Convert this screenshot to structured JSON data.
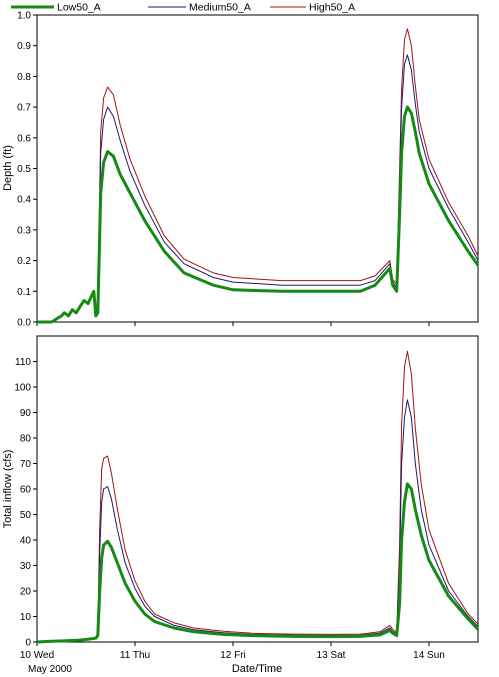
{
  "chart_data": [
    {
      "type": "line",
      "ylabel": "Depth (ft)",
      "xlabel": "",
      "ylim": [
        0,
        1.0
      ],
      "yticks": [
        0,
        0.1,
        0.2,
        0.3,
        0.4,
        0.5,
        0.6,
        0.7,
        0.8,
        0.9,
        1.0
      ],
      "ytick_labels": [
        "0.0",
        "0.1",
        "0.2",
        "0.3",
        "0.4",
        "0.5",
        "0.6",
        "0.7",
        "0.8",
        "0.9",
        "1.0"
      ],
      "xlim_days": [
        10,
        14.5
      ],
      "grid": false,
      "series": [
        {
          "name": "Low50_A",
          "color": "#158a15",
          "x_days": [
            10.0,
            10.15,
            10.2,
            10.25,
            10.28,
            10.32,
            10.36,
            10.4,
            10.44,
            10.48,
            10.52,
            10.55,
            10.58,
            10.6,
            10.62,
            10.65,
            10.68,
            10.72,
            10.78,
            10.85,
            10.95,
            11.1,
            11.3,
            11.5,
            11.8,
            12.0,
            12.5,
            13.0,
            13.3,
            13.45,
            13.6,
            13.63,
            13.67,
            13.7,
            13.72,
            13.75,
            13.78,
            13.82,
            13.86,
            13.9,
            14.0,
            14.2,
            14.4,
            14.5
          ],
          "y": [
            0,
            0,
            0.01,
            0.02,
            0.03,
            0.02,
            0.04,
            0.03,
            0.05,
            0.07,
            0.06,
            0.08,
            0.1,
            0.02,
            0.03,
            0.42,
            0.52,
            0.555,
            0.54,
            0.48,
            0.42,
            0.33,
            0.23,
            0.16,
            0.12,
            0.105,
            0.1,
            0.1,
            0.1,
            0.12,
            0.175,
            0.12,
            0.1,
            0.35,
            0.55,
            0.67,
            0.7,
            0.68,
            0.62,
            0.55,
            0.45,
            0.33,
            0.23,
            0.185
          ]
        },
        {
          "name": "Medium50_A",
          "color": "#1a1a6e",
          "x_days": [
            10.6,
            10.62,
            10.65,
            10.68,
            10.72,
            10.78,
            10.85,
            10.95,
            11.1,
            11.3,
            11.5,
            11.8,
            12.0,
            12.5,
            13.0,
            13.3,
            13.45,
            13.6,
            13.63,
            13.67,
            13.7,
            13.72,
            13.75,
            13.78,
            13.82,
            13.86,
            13.9,
            14.0,
            14.2,
            14.4,
            14.5
          ],
          "y": [
            0.03,
            0.04,
            0.55,
            0.66,
            0.7,
            0.67,
            0.59,
            0.49,
            0.38,
            0.26,
            0.19,
            0.145,
            0.13,
            0.12,
            0.12,
            0.12,
            0.135,
            0.19,
            0.13,
            0.11,
            0.45,
            0.7,
            0.84,
            0.87,
            0.82,
            0.71,
            0.62,
            0.5,
            0.37,
            0.26,
            0.2
          ]
        },
        {
          "name": "High50_A",
          "color": "#a01414",
          "x_days": [
            10.6,
            10.62,
            10.65,
            10.68,
            10.72,
            10.78,
            10.85,
            10.95,
            11.1,
            11.3,
            11.5,
            11.8,
            12.0,
            12.5,
            13.0,
            13.3,
            13.45,
            13.6,
            13.63,
            13.67,
            13.7,
            13.72,
            13.75,
            13.78,
            13.82,
            13.86,
            13.9,
            14.0,
            14.2,
            14.4,
            14.5
          ],
          "y": [
            0.04,
            0.05,
            0.62,
            0.73,
            0.765,
            0.74,
            0.64,
            0.53,
            0.41,
            0.28,
            0.205,
            0.16,
            0.145,
            0.135,
            0.135,
            0.135,
            0.15,
            0.2,
            0.14,
            0.12,
            0.5,
            0.76,
            0.92,
            0.955,
            0.9,
            0.77,
            0.66,
            0.53,
            0.39,
            0.28,
            0.215
          ]
        }
      ],
      "legend": [
        "Low50_A",
        "Medium50_A",
        "High50_A"
      ],
      "legend_position": "top-left"
    },
    {
      "type": "line",
      "ylabel": "Total inflow (cfs)",
      "xlabel": "Date/Time",
      "ylim": [
        0,
        120
      ],
      "yticks": [
        0,
        10,
        20,
        30,
        40,
        50,
        60,
        70,
        80,
        90,
        100,
        110
      ],
      "ytick_labels": [
        "0",
        "10",
        "20",
        "30",
        "40",
        "50",
        "60",
        "70",
        "80",
        "90",
        "100",
        "110"
      ],
      "xlim_days": [
        10,
        14.5
      ],
      "xticks_days": [
        10,
        11,
        12,
        13,
        14
      ],
      "xtick_labels": [
        "10 Wed",
        "11 Thu",
        "12 Fri",
        "13 Sat",
        "14 Sun"
      ],
      "x_sublabel": "May 2000",
      "grid": false,
      "series": [
        {
          "name": "Low50_A",
          "color": "#158a15",
          "x_days": [
            10.0,
            10.15,
            10.3,
            10.45,
            10.55,
            10.6,
            10.62,
            10.64,
            10.66,
            10.68,
            10.72,
            10.76,
            10.82,
            10.9,
            11.0,
            11.1,
            11.2,
            11.4,
            11.6,
            11.9,
            12.2,
            12.6,
            13.0,
            13.3,
            13.5,
            13.6,
            13.63,
            13.67,
            13.7,
            13.72,
            13.75,
            13.78,
            13.82,
            13.86,
            13.92,
            14.0,
            14.2,
            14.4,
            14.5
          ],
          "y": [
            0,
            0.3,
            0.5,
            0.8,
            1.2,
            1.5,
            2.5,
            20,
            33,
            38,
            39.5,
            37,
            31,
            23,
            16,
            11,
            8,
            5.5,
            4,
            3,
            2.5,
            2.2,
            2.1,
            2.2,
            2.8,
            4.5,
            3.5,
            2.5,
            15,
            40,
            55,
            62,
            60,
            52,
            42,
            32,
            18,
            9,
            5
          ]
        },
        {
          "name": "Medium50_A",
          "color": "#1a1a6e",
          "x_days": [
            10.6,
            10.62,
            10.64,
            10.66,
            10.68,
            10.72,
            10.76,
            10.82,
            10.9,
            11.0,
            11.1,
            11.2,
            11.4,
            11.6,
            11.9,
            12.2,
            12.6,
            13.0,
            13.3,
            13.5,
            13.6,
            13.63,
            13.67,
            13.7,
            13.72,
            13.75,
            13.78,
            13.82,
            13.86,
            13.92,
            14.0,
            14.2,
            14.4,
            14.5
          ],
          "y": [
            1.8,
            3,
            35,
            55,
            60,
            61,
            56,
            44,
            31,
            21,
            14,
            10,
            6.5,
            4.8,
            3.6,
            3,
            2.7,
            2.6,
            2.7,
            3.5,
            5.5,
            4.2,
            3,
            30,
            70,
            88,
            95,
            88,
            70,
            52,
            38,
            20,
            10,
            6
          ]
        },
        {
          "name": "High50_A",
          "color": "#a01414",
          "x_days": [
            10.6,
            10.62,
            10.64,
            10.66,
            10.68,
            10.72,
            10.76,
            10.82,
            10.9,
            11.0,
            11.1,
            11.2,
            11.4,
            11.6,
            11.9,
            12.2,
            12.6,
            13.0,
            13.3,
            13.5,
            13.6,
            13.63,
            13.67,
            13.7,
            13.72,
            13.75,
            13.78,
            13.82,
            13.86,
            13.92,
            14.0,
            14.2,
            14.4,
            14.5
          ],
          "y": [
            2,
            3.5,
            45,
            68,
            72,
            73,
            66,
            52,
            36,
            24,
            16,
            11,
            7.5,
            5.5,
            4.2,
            3.4,
            3.1,
            3,
            3.1,
            4,
            6.5,
            5,
            3.5,
            38,
            85,
            108,
            114,
            105,
            84,
            62,
            44,
            23,
            11,
            7
          ]
        }
      ]
    }
  ]
}
